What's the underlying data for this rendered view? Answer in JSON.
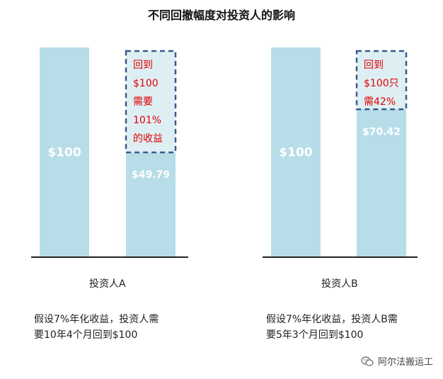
{
  "title": "不同回撤幅度对投资人的影响",
  "chart_data": [
    {
      "type": "bar",
      "investor": "投资人A",
      "initial_value": 100,
      "initial_label": "$100",
      "after_drawdown_value": 49.79,
      "after_drawdown_label": "$49.79",
      "recovery_box_lines": [
        "回到",
        "$100",
        "需要",
        "101%",
        "的收益"
      ],
      "note_lines": [
        "假设7%年化收益，投资人需",
        "要10年4个月回到$100"
      ]
    },
    {
      "type": "bar",
      "investor": "投资人B",
      "initial_value": 100,
      "initial_label": "$100",
      "after_drawdown_value": 70.42,
      "after_drawdown_label": "$70.42",
      "recovery_box_lines": [
        "回到",
        "$100只",
        "需42%"
      ],
      "note_lines": [
        "假设7%年化收益，投资人B需",
        "要5年3个月回到$100"
      ]
    }
  ],
  "colors": {
    "bar": "#b7dde8",
    "box_border": "#3a5a8c",
    "box_text": "#e00000",
    "bar_text": "#ffffff",
    "axis": "#222222"
  },
  "watermark": {
    "icon": "wechat-icon",
    "text": "阿尔法搬运工"
  }
}
